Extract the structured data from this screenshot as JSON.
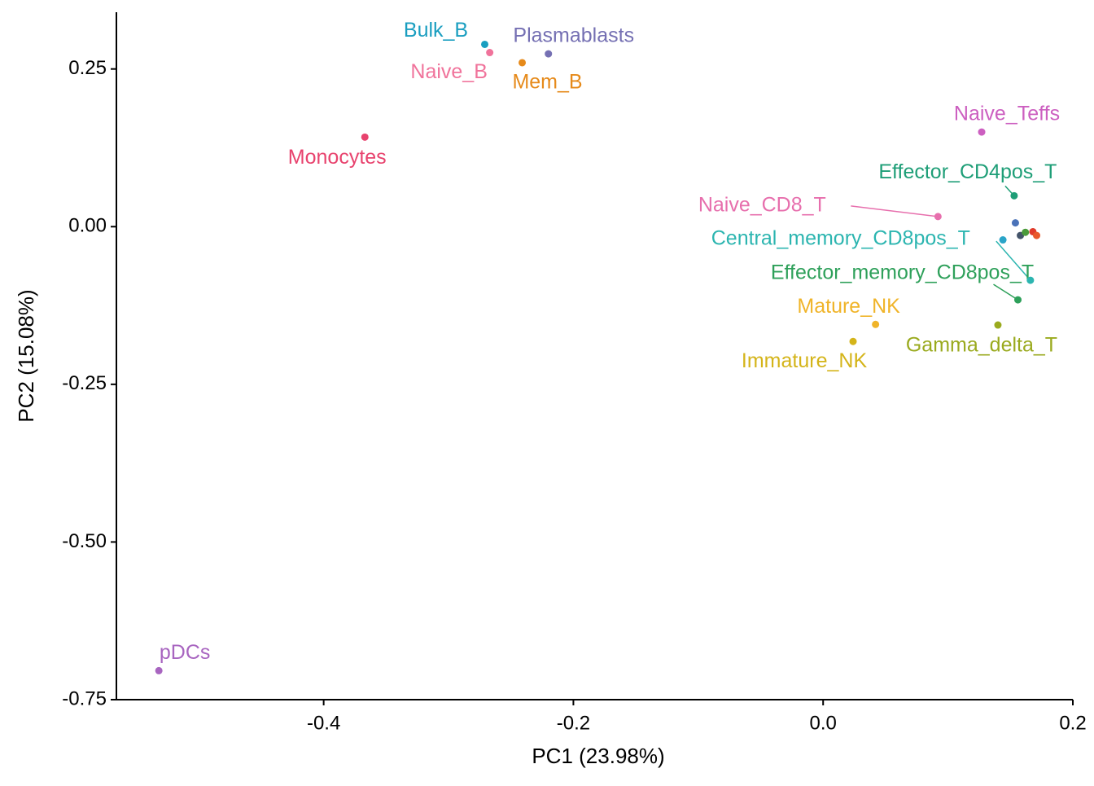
{
  "chart_data": {
    "type": "scatter",
    "xlabel": "PC1 (23.98%)",
    "ylabel": "PC2 (15.08%)",
    "xlim": [
      -0.566,
      0.2
    ],
    "ylim": [
      -0.75,
      0.34
    ],
    "xticks": [
      {
        "value": -0.4,
        "label": "-0.4"
      },
      {
        "value": -0.2,
        "label": "-0.2"
      },
      {
        "value": 0,
        "label": "0.0"
      },
      {
        "value": 0.2,
        "label": "0.2"
      }
    ],
    "yticks": [
      {
        "value": 0.25,
        "label": "0.25"
      },
      {
        "value": 0,
        "label": "0.00"
      },
      {
        "value": -0.25,
        "label": "-0.25"
      },
      {
        "value": -0.5,
        "label": "-0.50"
      },
      {
        "value": -0.75,
        "label": "-0.75"
      }
    ],
    "grid": false,
    "labels": [
      "Bulk_B",
      "Naive_B",
      "Plasmablasts",
      "Mem_B",
      "Monocytes",
      "pDCs",
      "Naive_Teffs",
      "Effector_CD4pos_T",
      "Naive_CD8_T",
      "Central_memory_CD8pos_T",
      "Effector_memory_CD8pos_T",
      "Mature_NK",
      "Immature_NK",
      "Gamma_delta_T",
      null,
      null,
      null,
      null,
      null,
      null
    ],
    "x": [
      -0.271,
      -0.267,
      -0.22,
      -0.241,
      -0.367,
      -0.532,
      0.127,
      0.153,
      0.092,
      0.166,
      0.156,
      0.042,
      0.024,
      0.14,
      0.144,
      0.154,
      0.158,
      0.162,
      0.168,
      0.171
    ],
    "y": [
      0.289,
      0.276,
      0.274,
      0.26,
      0.142,
      -0.704,
      0.15,
      0.049,
      0.016,
      -0.085,
      -0.116,
      -0.155,
      -0.182,
      -0.156,
      -0.021,
      0.006,
      -0.014,
      -0.009,
      -0.008,
      -0.014
    ],
    "colors": [
      "#1a9ec0",
      "#f0739b",
      "#7570b3",
      "#e68a1a",
      "#e8436e",
      "#a865c0",
      "#cc5fc0",
      "#1e9e77",
      "#e76fad",
      "#2cb5b0",
      "#2ea05a",
      "#f0b429",
      "#d4b419",
      "#9aaa1e",
      "#2aa4c8",
      "#4a72b8",
      "#44546a",
      "#4a9a3a",
      "#e03a2a",
      "#e8582a"
    ]
  }
}
